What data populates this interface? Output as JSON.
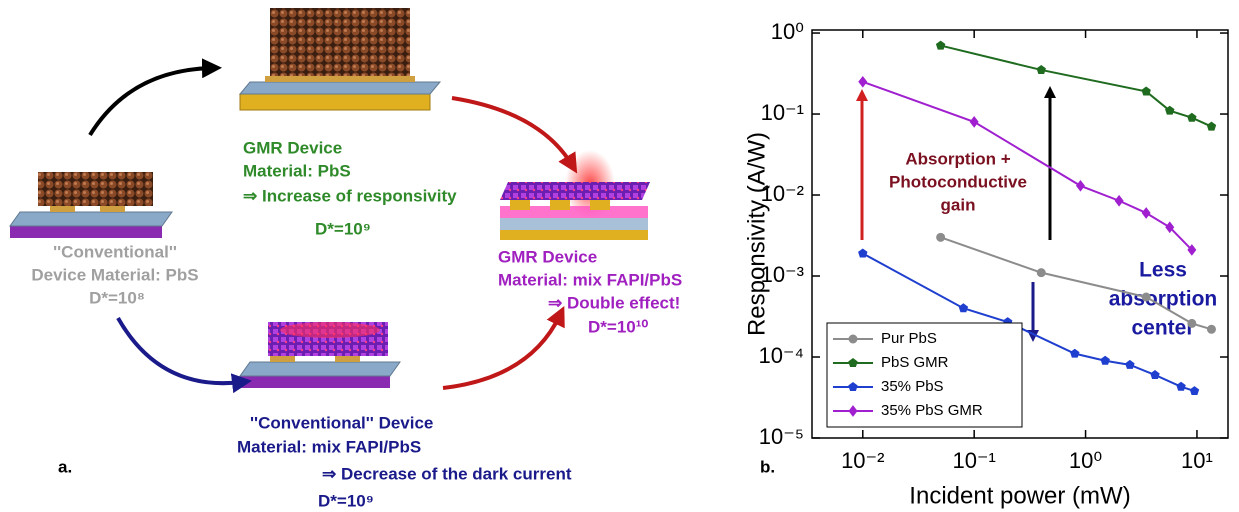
{
  "diagram": {
    "panel_label": "a.",
    "gmr_pbs": {
      "title": "GMR Device",
      "material": "Material: PbS",
      "effect": "⇒ Increase of responsivity",
      "detectivity": "D*=10⁹"
    },
    "conventional_pbs": {
      "title": "''Conventional''",
      "material": "Device Material: PbS",
      "detectivity": "D*=10⁸"
    },
    "gmr_mix": {
      "title": "GMR Device",
      "material": "Material: mix FAPI/PbS",
      "effect": "⇒ Double effect!",
      "detectivity": "D*=10¹⁰"
    },
    "conventional_mix": {
      "title": "''Conventional'' Device",
      "material": "Material: mix FAPI/PbS",
      "effect": "⇒ Decrease of the dark current",
      "detectivity": "D*=10⁹"
    }
  },
  "chart_data": {
    "type": "line",
    "panel_label": "b.",
    "x_label": "Incident power (mW)",
    "y_label": "Responsivity (A/W)",
    "log_x": true,
    "log_y": true,
    "xlim": [
      0.0035,
      19
    ],
    "ylim": [
      1e-05,
      1.09
    ],
    "xticks": [
      {
        "value": 0.01,
        "label": "10⁻²"
      },
      {
        "value": 0.1,
        "label": "10⁻¹"
      },
      {
        "value": 1,
        "label": "10⁰"
      },
      {
        "value": 10,
        "label": "10¹"
      }
    ],
    "yticks": [
      {
        "value": 1e-05,
        "label": "10⁻⁵"
      },
      {
        "value": 0.0001,
        "label": "10⁻⁴"
      },
      {
        "value": 0.001,
        "label": "10⁻³"
      },
      {
        "value": 0.01,
        "label": "10⁻²"
      },
      {
        "value": 0.1,
        "label": "10⁻¹"
      },
      {
        "value": 1,
        "label": "10⁰"
      }
    ],
    "legend_position": "lower left",
    "annotations": [
      "Absorption +",
      "Photoconductive",
      "gain",
      "Less",
      "absorption",
      "center"
    ],
    "series": [
      {
        "name": "Pur PbS",
        "color": "#8c8c8c",
        "marker": "circle",
        "x": [
          0.05,
          0.4,
          3.5,
          9,
          13.5
        ],
        "values": [
          0.003,
          0.0011,
          0.00055,
          0.00026,
          0.00022
        ]
      },
      {
        "name": "PbS GMR",
        "color": "#1f6b1f",
        "marker": "pentagon",
        "x": [
          0.05,
          0.4,
          3.5,
          5.7,
          9,
          13.5
        ],
        "values": [
          0.7,
          0.35,
          0.19,
          0.11,
          0.09,
          0.07
        ]
      },
      {
        "name": "35% PbS",
        "color": "#1f3fcf",
        "marker": "pentagon",
        "x": [
          0.01,
          0.08,
          0.2,
          0.8,
          1.5,
          2.5,
          4.2,
          7.2,
          9.5
        ],
        "values": [
          0.0019,
          0.0004,
          0.00027,
          0.00011,
          9e-05,
          8e-05,
          6e-05,
          4.3e-05,
          3.8e-05
        ]
      },
      {
        "name": "35% PbS GMR",
        "color": "#a020d0",
        "marker": "diamond",
        "x": [
          0.01,
          0.1,
          0.9,
          2,
          3.5,
          5.7,
          9
        ],
        "values": [
          0.25,
          0.08,
          0.013,
          0.0085,
          0.006,
          0.004,
          0.0021
        ]
      }
    ]
  }
}
